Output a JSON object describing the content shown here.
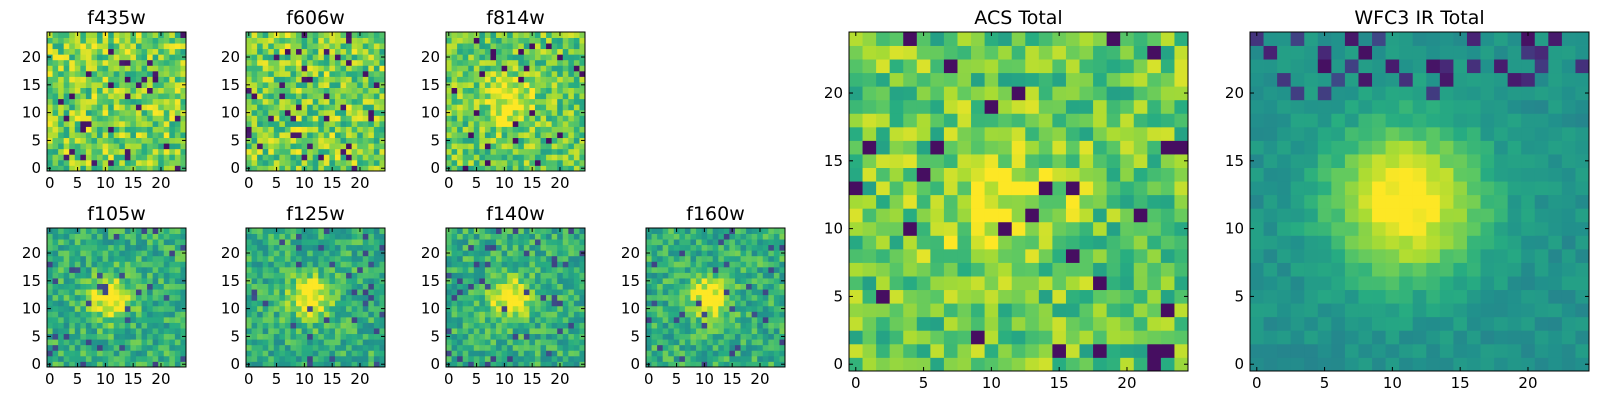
{
  "chart_data": {
    "type": "heatmap",
    "colormap": "viridis",
    "image_size": [
      25,
      25
    ],
    "panels": [
      {
        "id": "f435w",
        "title": "f435w",
        "group": "acs",
        "xticks": [
          0,
          5,
          10,
          15,
          20
        ],
        "yticks": [
          0,
          5,
          10,
          15,
          20
        ],
        "pattern": "noise",
        "seed": 11
      },
      {
        "id": "f606w",
        "title": "f606w",
        "group": "acs",
        "xticks": [
          0,
          5,
          10,
          15,
          20
        ],
        "yticks": [
          0,
          5,
          10,
          15,
          20
        ],
        "pattern": "noise",
        "seed": 23
      },
      {
        "id": "f814w",
        "title": "f814w",
        "group": "acs",
        "xticks": [
          0,
          5,
          10,
          15,
          20
        ],
        "yticks": [
          0,
          5,
          10,
          15,
          20
        ],
        "pattern": "faint-source",
        "seed": 37
      },
      {
        "id": "f105w",
        "title": "f105w",
        "group": "ir",
        "xticks": [
          0,
          5,
          10,
          15,
          20
        ],
        "yticks": [
          0,
          5,
          10,
          15,
          20
        ],
        "pattern": "source",
        "seed": 41
      },
      {
        "id": "f125w",
        "title": "f125w",
        "group": "ir",
        "xticks": [
          0,
          5,
          10,
          15,
          20
        ],
        "yticks": [
          0,
          5,
          10,
          15,
          20
        ],
        "pattern": "source",
        "seed": 53
      },
      {
        "id": "f140w",
        "title": "f140w",
        "group": "ir",
        "xticks": [
          0,
          5,
          10,
          15,
          20
        ],
        "yticks": [
          0,
          5,
          10,
          15,
          20
        ],
        "pattern": "source",
        "seed": 67
      },
      {
        "id": "f160w",
        "title": "f160w",
        "group": "ir",
        "xticks": [
          0,
          5,
          10,
          15,
          20
        ],
        "yticks": [
          0,
          5,
          10,
          15,
          20
        ],
        "pattern": "source",
        "seed": 71
      },
      {
        "id": "acs-total",
        "title": "ACS Total",
        "group": "acs-total",
        "xticks": [
          0,
          5,
          10,
          15,
          20
        ],
        "yticks": [
          0,
          5,
          10,
          15,
          20
        ],
        "pattern": "faint-source",
        "seed": 83
      },
      {
        "id": "wfc3-ir-total",
        "title": "WFC3 IR Total",
        "group": "ir-total",
        "xticks": [
          0,
          5,
          10,
          15,
          20
        ],
        "yticks": [
          0,
          5,
          10,
          15,
          20
        ],
        "pattern": "bright-source",
        "seed": 97
      }
    ],
    "source_center": [
      11,
      12
    ]
  }
}
